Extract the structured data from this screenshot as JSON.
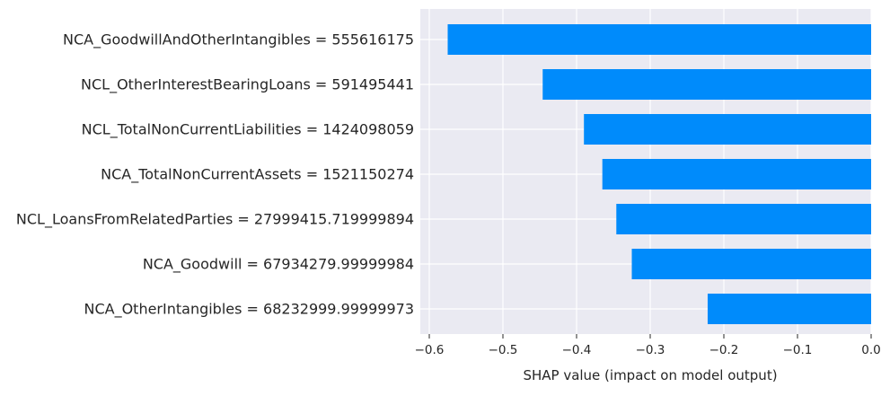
{
  "chart_data": {
    "type": "bar",
    "orientation": "horizontal",
    "xlabel": "SHAP value (impact on model output)",
    "ylabel": "",
    "title": "",
    "xlim": [
      -0.6,
      0.0
    ],
    "x_ticks": [
      -0.6,
      -0.5,
      -0.4,
      -0.3,
      -0.2,
      -0.1,
      0.0
    ],
    "x_tick_labels": [
      "−0.6",
      "−0.5",
      "−0.4",
      "−0.3",
      "−0.2",
      "−0.1",
      "0.0"
    ],
    "grid": true,
    "bar_color": "#008bfb",
    "background_color": "#eaeaf2",
    "categories": [
      "NCA_GoodwillAndOtherIntangibles = 555616175",
      "NCL_OtherInterestBearingLoans = 591495441",
      "NCL_TotalNonCurrentLiabilities = 1424098059",
      "NCA_TotalNonCurrentAssets = 1521150274",
      "NCL_LoansFromRelatedParties = 27999415.719999894",
      "NCA_Goodwill = 67934279.99999984",
      "NCA_OtherIntangibles = 68232999.99999973"
    ],
    "values": [
      -0.575,
      -0.446,
      -0.39,
      -0.365,
      -0.346,
      -0.325,
      -0.222
    ]
  }
}
